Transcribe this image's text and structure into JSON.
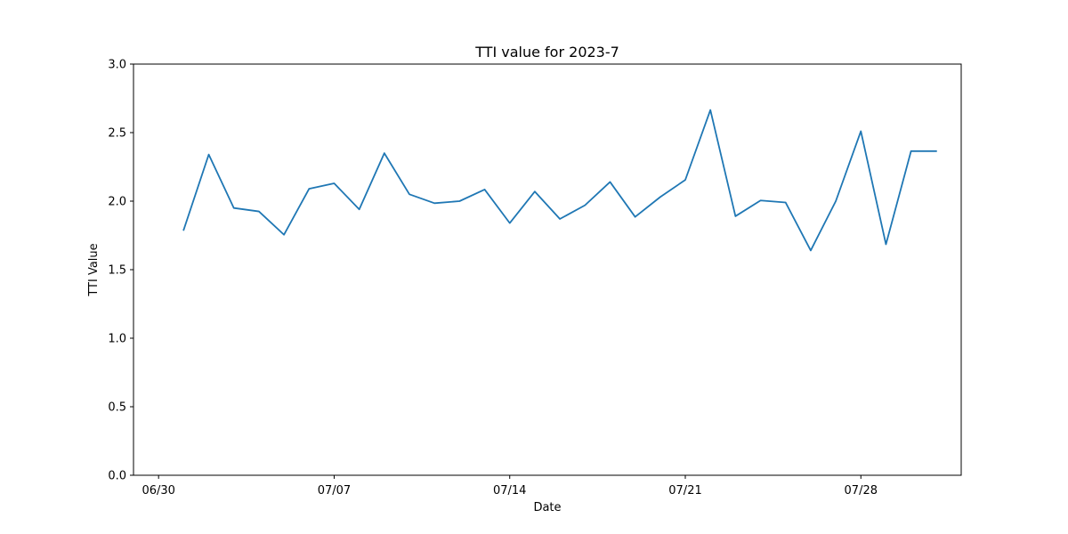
{
  "chart_data": {
    "type": "line",
    "title": "TTI value for 2023-7",
    "xlabel": "Date",
    "ylabel": "TTI Value",
    "x_ticks": [
      "06/30",
      "07/07",
      "07/14",
      "07/21",
      "07/28"
    ],
    "y_ticks": [
      "0.0",
      "0.5",
      "1.0",
      "1.5",
      "2.0",
      "2.5",
      "3.0"
    ],
    "ylim": [
      0,
      3.0
    ],
    "xlim": [
      "2023-06-29",
      "2023-08-01"
    ],
    "grid": false,
    "series": [
      {
        "color": "#1f77b4",
        "x": [
          "2023-07-01",
          "2023-07-02",
          "2023-07-03",
          "2023-07-04",
          "2023-07-05",
          "2023-07-06",
          "2023-07-07",
          "2023-07-08",
          "2023-07-09",
          "2023-07-10",
          "2023-07-11",
          "2023-07-12",
          "2023-07-13",
          "2023-07-14",
          "2023-07-15",
          "2023-07-16",
          "2023-07-17",
          "2023-07-18",
          "2023-07-19",
          "2023-07-20",
          "2023-07-21",
          "2023-07-22",
          "2023-07-23",
          "2023-07-24",
          "2023-07-25",
          "2023-07-26",
          "2023-07-27",
          "2023-07-28",
          "2023-07-29",
          "2023-07-30",
          "2023-07-31"
        ],
        "values": [
          1.79,
          2.34,
          1.95,
          1.925,
          1.755,
          2.09,
          2.13,
          1.94,
          2.35,
          2.05,
          1.985,
          2.0,
          2.085,
          1.84,
          2.07,
          1.87,
          1.97,
          2.14,
          1.885,
          2.03,
          2.155,
          2.665,
          1.89,
          2.005,
          1.99,
          1.64,
          2.0,
          2.51,
          1.685,
          2.365,
          2.365
        ]
      }
    ]
  }
}
